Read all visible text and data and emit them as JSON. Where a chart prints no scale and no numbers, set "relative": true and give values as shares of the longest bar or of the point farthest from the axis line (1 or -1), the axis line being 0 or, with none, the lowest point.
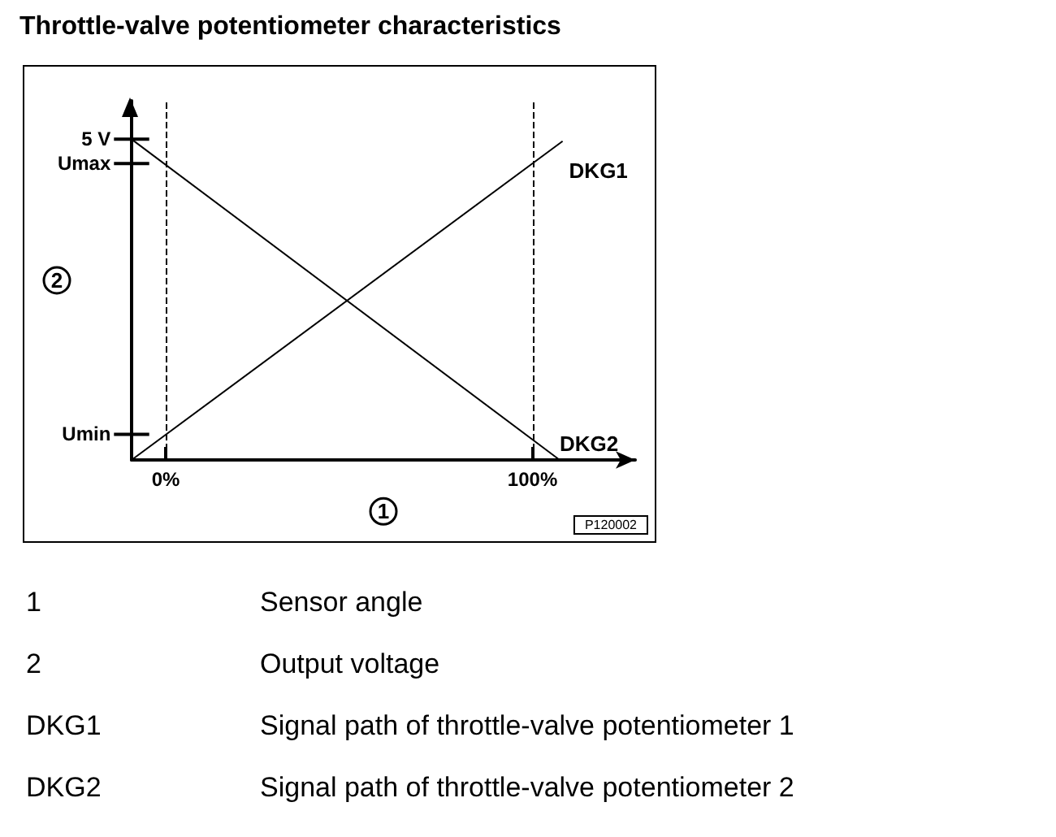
{
  "chart_data": {
    "type": "line",
    "title": "Throttle-valve potentiometer characteristics",
    "xlabel": "1",
    "ylabel": "2",
    "series": [
      {
        "name": "DKG1",
        "color": "#000000",
        "x": [
          -9.3,
          108.2
        ],
        "values": [
          0,
          0.994
        ]
      },
      {
        "name": "DKG2",
        "color": "#000000",
        "x": [
          -9.3,
          107.4
        ],
        "values": [
          1,
          0
        ]
      }
    ],
    "xlim": [
      -9.3,
      128
    ],
    "xticks": [
      {
        "value": 0,
        "label": "0%"
      },
      {
        "value": 100,
        "label": "100%"
      }
    ],
    "relative": true,
    "ref_lines": [
      {
        "axis": "x",
        "value": 0,
        "line_style": "dashed",
        "color": "#000000"
      },
      {
        "axis": "x",
        "value": 100,
        "line_style": "dashed",
        "color": "#000000"
      },
      {
        "axis": "y",
        "value": 1,
        "label": "5 V",
        "line_style": "solid",
        "color": "#000000"
      },
      {
        "axis": "y",
        "value": 0.924,
        "label": "Umax",
        "line_style": "solid",
        "color": "#000000"
      },
      {
        "axis": "y",
        "value": 0.08,
        "label": "Umin",
        "line_style": "solid",
        "color": "#000000"
      }
    ],
    "annotations": [
      "P120002",
      "1",
      "Sensor angle",
      "2",
      "Output voltage",
      "DKG1",
      "Signal path of throttle-valve potentiometer 1",
      "DKG2",
      "Signal path of throttle-valve potentiometer 2"
    ],
    "grid": false,
    "legend": false,
    "marker": "none",
    "line_style": "solid"
  }
}
